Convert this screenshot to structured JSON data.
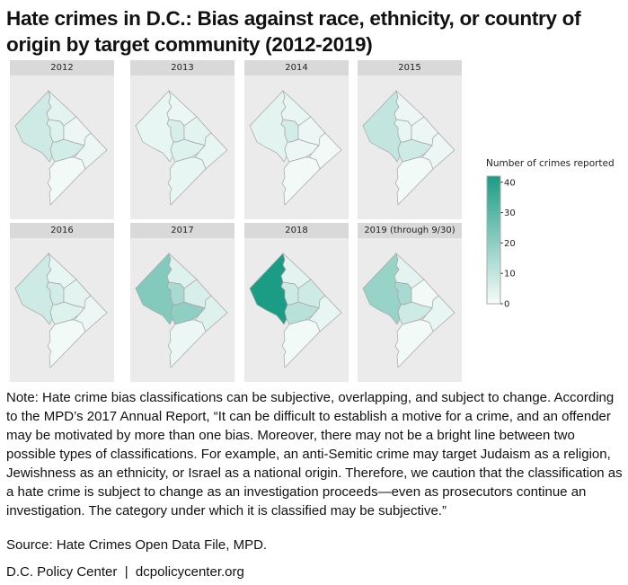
{
  "chart_data": {
    "type": "choropleth",
    "title": "Hate crimes in D.C.: Bias against race, ethnicity, or country of origin by target community (2012-2019)",
    "legend": {
      "title": "Number of crimes reported",
      "ticks": [
        0,
        10,
        20,
        30,
        40
      ],
      "range": [
        0,
        42
      ],
      "color_low": "#f7fcfb",
      "color_high": "#1a9c85",
      "placement": "right"
    },
    "region_order": [
      "west",
      "north",
      "center",
      "center-east",
      "south-center",
      "east",
      "south"
    ],
    "panels": [
      {
        "label": "2012",
        "values": [
          8,
          4,
          5,
          2,
          7,
          2,
          1
        ]
      },
      {
        "label": "2013",
        "values": [
          3,
          2,
          6,
          4,
          5,
          3,
          3
        ]
      },
      {
        "label": "2014",
        "values": [
          4,
          3,
          7,
          2,
          2,
          1,
          1
        ]
      },
      {
        "label": "2015",
        "values": [
          10,
          2,
          3,
          2,
          8,
          2,
          1
        ]
      },
      {
        "label": "2016",
        "values": [
          8,
          3,
          7,
          4,
          5,
          2,
          1
        ]
      },
      {
        "label": "2017",
        "values": [
          22,
          5,
          15,
          6,
          20,
          5,
          2
        ]
      },
      {
        "label": "2018",
        "values": [
          42,
          4,
          8,
          8,
          12,
          3,
          1
        ]
      },
      {
        "label": "2019 (through 9/30)",
        "values": [
          18,
          4,
          15,
          1,
          8,
          3,
          1
        ]
      }
    ]
  },
  "note": "Note: Hate crime bias classifications can be subjective, overlapping, and subject to change. According to the MPD’s 2017 Annual Report, “It can be difficult to establish a motive for a crime, and an offender may be motivated by more than one bias. Moreover, there may not be a bright line between two possible types of classifications. For example, an anti-Semitic crime may target Judaism as a religion, Jewishness as an ethnicity, or Israel as a national origin. Therefore, we caution that the classification as a hate crime is subject to change as an investigation proceeds—even as prosecutors continue an investigation. The category under which it is classified may be subjective.”",
  "source": "Source: Hate Crimes Open Data File, MPD.",
  "footer": "D.C. Policy Center  |  dcpolicycenter.org"
}
